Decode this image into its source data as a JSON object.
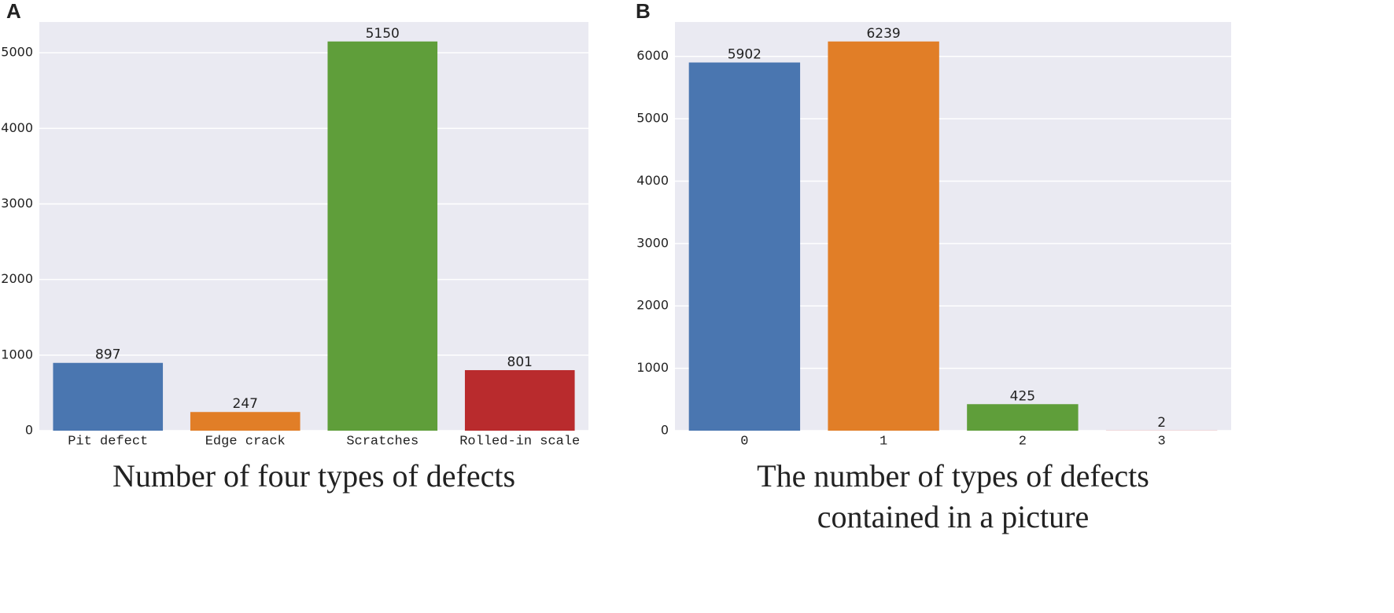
{
  "chart_data": [
    {
      "type": "bar",
      "panel_label": "A",
      "xlabel": [
        "Number of four types of defects"
      ],
      "categories": [
        "Pit defect",
        "Edge crack",
        "Scratches",
        "Rolled-in scale"
      ],
      "values": [
        897,
        247,
        5150,
        801
      ],
      "colors": [
        "#4a76b0",
        "#e17e27",
        "#5f9e3a",
        "#b92b2d"
      ],
      "ylim": [
        0,
        5407.5
      ],
      "yticks": [
        0,
        1000,
        2000,
        3000,
        4000,
        5000
      ],
      "grid": true
    },
    {
      "type": "bar",
      "panel_label": "B",
      "xlabel": [
        "The number of types of defects",
        "contained in a picture"
      ],
      "categories": [
        "0",
        "1",
        "2",
        "3"
      ],
      "values": [
        5902,
        6239,
        425,
        2
      ],
      "colors": [
        "#4a76b0",
        "#e17e27",
        "#5f9e3a",
        "#b92b2d"
      ],
      "ylim": [
        0,
        6550.95
      ],
      "yticks": [
        0,
        1000,
        2000,
        3000,
        4000,
        5000,
        6000
      ],
      "grid": true
    }
  ]
}
